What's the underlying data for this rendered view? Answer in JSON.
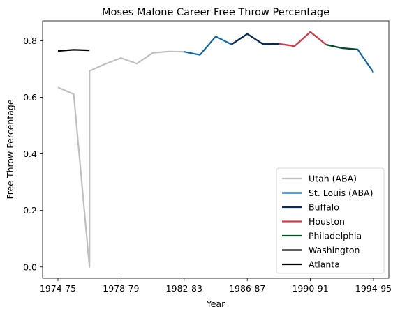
{
  "chart_data": {
    "type": "line",
    "title": "Moses Malone Career Free Throw Percentage",
    "xlabel": "Year",
    "ylabel": "Free Throw Percentage",
    "xticks": [
      "1974-75",
      "1978-79",
      "1982-83",
      "1986-87",
      "1990-91",
      "1994-95"
    ],
    "xlim": [
      "1974-75",
      "1994-95"
    ],
    "ylim": [
      -0.04,
      0.87
    ],
    "yticks": [
      0.0,
      0.2,
      0.4,
      0.6,
      0.8
    ],
    "ytick_labels": [
      "0.0",
      "0.2",
      "0.4",
      "0.6",
      "0.8"
    ],
    "grid": false,
    "legend_position": "bottom-right",
    "series": [
      {
        "name": "Utah (ABA)",
        "color": "#bfbfbf",
        "points": [
          {
            "x": "1974-75",
            "y": 0.635
          },
          {
            "x": "1975-76",
            "y": 0.611
          },
          {
            "x": "1976-77",
            "y": 0.0
          },
          {
            "x": "1976-77",
            "y": 0.693
          },
          {
            "x": "1977-78",
            "y": 0.718
          },
          {
            "x": "1978-79",
            "y": 0.739
          },
          {
            "x": "1979-80",
            "y": 0.719
          },
          {
            "x": "1980-81",
            "y": 0.757
          },
          {
            "x": "1981-82",
            "y": 0.762
          },
          {
            "x": "1982-83",
            "y": 0.761
          }
        ]
      },
      {
        "name": "St. Louis (ABA)",
        "color": "#0b66ad",
        "points": [
          {
            "x": "1982-83",
            "y": 0.761
          },
          {
            "x": "1983-84",
            "y": 0.75
          },
          {
            "x": "1984-85",
            "y": 0.815
          },
          {
            "x": "1985-86",
            "y": 0.787
          },
          {
            "x": "1986-87",
            "y": 0.824
          },
          {
            "x": "1987-88",
            "y": 0.788
          },
          {
            "x": "1988-89",
            "y": 0.789
          },
          {
            "x": "1989-90",
            "y": 0.781
          },
          {
            "x": "1990-91",
            "y": 0.831
          },
          {
            "x": "1991-92",
            "y": 0.786
          },
          {
            "x": "1992-93",
            "y": 0.774
          },
          {
            "x": "1993-94",
            "y": 0.769
          },
          {
            "x": "1994-95",
            "y": 0.688
          }
        ]
      },
      {
        "name": "Buffalo",
        "color": "#0a2a4f",
        "points": [
          {
            "x": "1985-86",
            "y": 0.787
          },
          {
            "x": "1986-87",
            "y": 0.824
          },
          {
            "x": "1987-88",
            "y": 0.788
          },
          {
            "x": "1988-89",
            "y": 0.789
          }
        ]
      },
      {
        "name": "Houston",
        "color": "#dc3b46",
        "points": [
          {
            "x": "1988-89",
            "y": 0.789
          },
          {
            "x": "1989-90",
            "y": 0.781
          },
          {
            "x": "1990-91",
            "y": 0.831
          },
          {
            "x": "1991-92",
            "y": 0.786
          }
        ]
      },
      {
        "name": "Philadelphia",
        "color": "#004d24",
        "points": [
          {
            "x": "1991-92",
            "y": 0.786
          },
          {
            "x": "1992-93",
            "y": 0.774
          },
          {
            "x": "1993-94",
            "y": 0.769
          }
        ]
      },
      {
        "name": "Washington",
        "color": "#000000",
        "points": [
          {
            "x": "1974-75",
            "y": 0.764
          },
          {
            "x": "1975-76",
            "y": 0.768
          },
          {
            "x": "1976-77",
            "y": 0.766
          }
        ]
      },
      {
        "name": "Atlanta",
        "color": "#000000",
        "points": []
      }
    ]
  }
}
